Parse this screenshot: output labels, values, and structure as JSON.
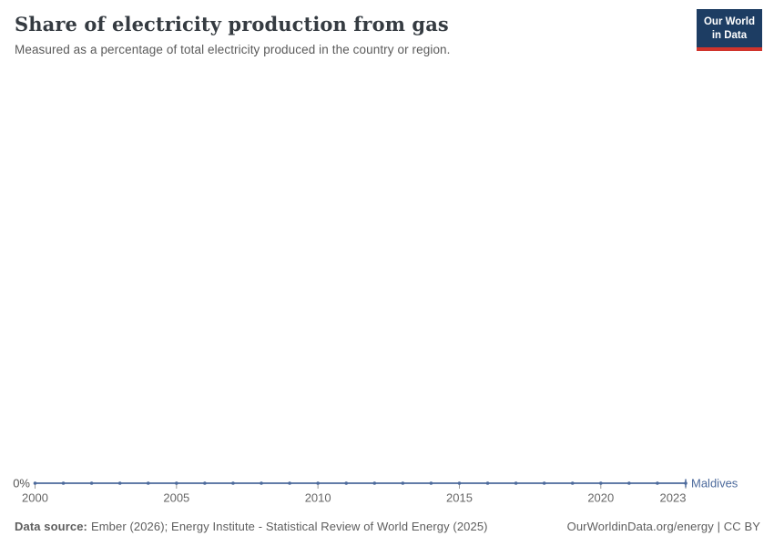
{
  "header": {
    "title": "Share of electricity production from gas",
    "subtitle": "Measured as a percentage of total electricity produced in the country or region.",
    "logo": {
      "line1": "Our World",
      "line2": "in Data",
      "bg_color": "#1d3d63",
      "bar_color": "#d0342c",
      "text_color": "#ffffff"
    }
  },
  "chart_data": {
    "type": "line",
    "title": "Share of electricity production from gas",
    "xlabel": "",
    "ylabel": "",
    "x": [
      2000,
      2001,
      2002,
      2003,
      2004,
      2005,
      2006,
      2007,
      2008,
      2009,
      2010,
      2011,
      2012,
      2013,
      2014,
      2015,
      2016,
      2017,
      2018,
      2019,
      2020,
      2021,
      2022,
      2023
    ],
    "series": [
      {
        "name": "Maldives",
        "color": "#4C6A9C",
        "values": [
          0,
          0,
          0,
          0,
          0,
          0,
          0,
          0,
          0,
          0,
          0,
          0,
          0,
          0,
          0,
          0,
          0,
          0,
          0,
          0,
          0,
          0,
          0,
          0
        ]
      }
    ],
    "x_ticks": [
      2000,
      2005,
      2010,
      2015,
      2020,
      2023
    ],
    "y_axis_label": "0%",
    "ylim": [
      0,
      100
    ],
    "grid": false,
    "legend_position": "right-of-line",
    "axis_label_color": "#666666",
    "tick_color": "#999999"
  },
  "footer": {
    "source_label": "Data source:",
    "source_text": "Ember (2026); Energy Institute - Statistical Review of World Energy (2025)",
    "link_text": "OurWorldinData.org/energy | CC BY"
  }
}
